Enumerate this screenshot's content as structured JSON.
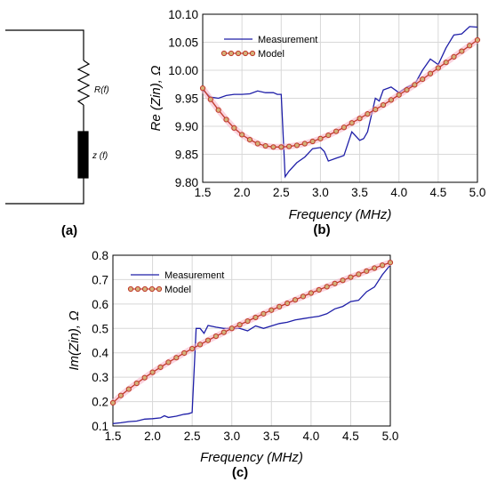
{
  "panel_labels": {
    "a": "(a)",
    "b": "(b)",
    "c": "(c)"
  },
  "circuit": {
    "resistor_label": "R(f)",
    "impedance_label": "z (f)"
  },
  "colors": {
    "measurement": "#1f1fa8",
    "model_line": "#c0392b",
    "model_marker_fill": "#d4b27a",
    "model_glow": "#f7b6c8",
    "grid": "#d8d8d8"
  },
  "chart_data": [
    {
      "id": "b",
      "type": "line",
      "xlabel": "Frequency (MHz)",
      "ylabel": "Re (Zin), Ω",
      "xlim": [
        1.5,
        5.0
      ],
      "ylim": [
        9.8,
        10.1
      ],
      "xticks": [
        "1.5",
        "2.0",
        "2.5",
        "3.0",
        "3.5",
        "4.0",
        "4.5",
        "5.0"
      ],
      "yticks": [
        "9.80",
        "9.85",
        "9.90",
        "9.95",
        "10.00",
        "10.05",
        "10.10"
      ],
      "grid": true,
      "legend_position": "top-left",
      "series": [
        {
          "name": "Measurement",
          "style": "measurement",
          "x": [
            1.5,
            1.6,
            1.7,
            1.8,
            1.9,
            2.0,
            2.1,
            2.2,
            2.3,
            2.4,
            2.45,
            2.5,
            2.55,
            2.6,
            2.7,
            2.8,
            2.9,
            3.0,
            3.05,
            3.1,
            3.2,
            3.3,
            3.4,
            3.5,
            3.55,
            3.6,
            3.7,
            3.75,
            3.8,
            3.9,
            4.0,
            4.1,
            4.2,
            4.3,
            4.4,
            4.5,
            4.6,
            4.7,
            4.8,
            4.9,
            5.0
          ],
          "y": [
            9.965,
            9.952,
            9.95,
            9.955,
            9.957,
            9.957,
            9.958,
            9.963,
            9.96,
            9.96,
            9.957,
            9.957,
            9.81,
            9.82,
            9.835,
            9.845,
            9.86,
            9.862,
            9.855,
            9.838,
            9.843,
            9.848,
            9.89,
            9.875,
            9.878,
            9.89,
            9.95,
            9.945,
            9.965,
            9.97,
            9.96,
            9.97,
            9.975,
            10.0,
            10.02,
            10.01,
            10.04,
            10.063,
            10.065,
            10.078,
            10.077
          ]
        },
        {
          "name": "Model",
          "style": "model",
          "x": [
            1.5,
            1.6,
            1.7,
            1.8,
            1.9,
            2.0,
            2.1,
            2.2,
            2.3,
            2.4,
            2.5,
            2.6,
            2.7,
            2.8,
            2.9,
            3.0,
            3.1,
            3.2,
            3.3,
            3.4,
            3.5,
            3.6,
            3.7,
            3.8,
            3.9,
            4.0,
            4.1,
            4.2,
            4.3,
            4.4,
            4.5,
            4.6,
            4.7,
            4.8,
            4.9,
            5.0
          ],
          "y": [
            9.968,
            9.948,
            9.929,
            9.912,
            9.897,
            9.885,
            9.876,
            9.869,
            9.865,
            9.863,
            9.863,
            9.864,
            9.866,
            9.869,
            9.873,
            9.878,
            9.884,
            9.891,
            9.898,
            9.906,
            9.914,
            9.922,
            9.93,
            9.938,
            9.947,
            9.956,
            9.965,
            9.974,
            9.984,
            9.994,
            10.004,
            10.014,
            10.024,
            10.034,
            10.044,
            10.054
          ]
        }
      ]
    },
    {
      "id": "c",
      "type": "line",
      "xlabel": "Frequency (MHz)",
      "ylabel": "Im(Zin), Ω",
      "xlim": [
        1.5,
        5.0
      ],
      "ylim": [
        0.1,
        0.8
      ],
      "xticks": [
        "1.5",
        "2.0",
        "2.5",
        "3.0",
        "3.5",
        "4.0",
        "4.5",
        "5.0"
      ],
      "yticks": [
        "0.1",
        "0.2",
        "0.3",
        "0.4",
        "0.5",
        "0.6",
        "0.7",
        "0.8"
      ],
      "grid": true,
      "legend_position": "top-left",
      "series": [
        {
          "name": "Measurement",
          "style": "measurement",
          "x": [
            1.5,
            1.6,
            1.7,
            1.8,
            1.9,
            2.0,
            2.1,
            2.15,
            2.2,
            2.3,
            2.4,
            2.45,
            2.5,
            2.55,
            2.6,
            2.65,
            2.7,
            2.8,
            2.9,
            3.0,
            3.1,
            3.2,
            3.3,
            3.4,
            3.5,
            3.6,
            3.7,
            3.8,
            3.9,
            4.0,
            4.1,
            4.2,
            4.3,
            4.4,
            4.5,
            4.6,
            4.7,
            4.8,
            4.9,
            5.0
          ],
          "y": [
            0.11,
            0.113,
            0.118,
            0.12,
            0.128,
            0.13,
            0.133,
            0.142,
            0.135,
            0.14,
            0.148,
            0.15,
            0.155,
            0.5,
            0.5,
            0.48,
            0.512,
            0.505,
            0.5,
            0.5,
            0.5,
            0.49,
            0.51,
            0.5,
            0.51,
            0.52,
            0.525,
            0.535,
            0.54,
            0.545,
            0.55,
            0.56,
            0.58,
            0.59,
            0.61,
            0.615,
            0.65,
            0.67,
            0.72,
            0.76
          ]
        },
        {
          "name": "Model",
          "style": "model",
          "x": [
            1.5,
            1.6,
            1.7,
            1.8,
            1.9,
            2.0,
            2.1,
            2.2,
            2.3,
            2.4,
            2.5,
            2.6,
            2.7,
            2.8,
            2.9,
            3.0,
            3.1,
            3.2,
            3.3,
            3.4,
            3.5,
            3.6,
            3.7,
            3.8,
            3.9,
            4.0,
            4.1,
            4.2,
            4.3,
            4.4,
            4.5,
            4.6,
            4.7,
            4.8,
            4.9,
            5.0
          ],
          "y": [
            0.195,
            0.225,
            0.251,
            0.275,
            0.298,
            0.32,
            0.341,
            0.361,
            0.38,
            0.399,
            0.417,
            0.434,
            0.451,
            0.468,
            0.484,
            0.5,
            0.515,
            0.53,
            0.545,
            0.56,
            0.575,
            0.589,
            0.603,
            0.617,
            0.631,
            0.645,
            0.658,
            0.671,
            0.684,
            0.697,
            0.71,
            0.722,
            0.735,
            0.747,
            0.759,
            0.77
          ]
        }
      ]
    }
  ]
}
